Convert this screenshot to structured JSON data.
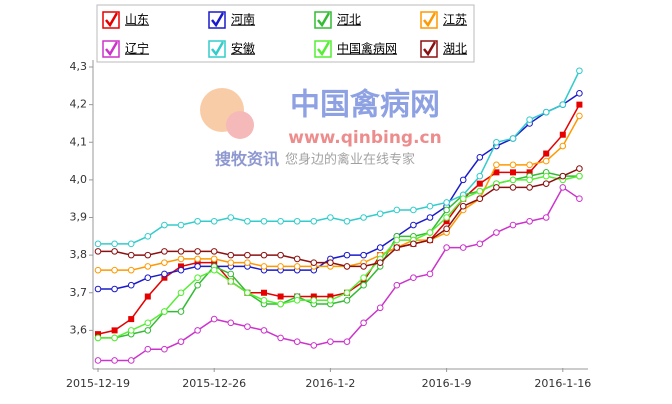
{
  "chart_data": {
    "type": "line",
    "categories": [
      "2015-12-19",
      null,
      null,
      null,
      null,
      null,
      null,
      "2015-12-26",
      null,
      null,
      null,
      null,
      null,
      null,
      "2016-1-2",
      null,
      null,
      null,
      null,
      null,
      null,
      "2016-1-9",
      null,
      null,
      null,
      null,
      null,
      null,
      "2016-1-16",
      null
    ],
    "series": [
      {
        "name": "山东",
        "color": "#e60000",
        "marker": "square",
        "values": [
          3.59,
          3.6,
          3.63,
          3.69,
          3.74,
          3.77,
          3.78,
          3.78,
          3.73,
          3.7,
          3.7,
          3.69,
          3.69,
          3.69,
          3.69,
          3.7,
          3.73,
          3.8,
          3.82,
          3.83,
          3.84,
          3.89,
          3.95,
          3.99,
          4.02,
          4.02,
          4.02,
          4.07,
          4.12,
          4.2
        ]
      },
      {
        "name": "河南",
        "color": "#1a1acc",
        "marker": "circle",
        "values": [
          3.71,
          3.71,
          3.72,
          3.74,
          3.75,
          3.76,
          3.77,
          3.77,
          3.77,
          3.77,
          3.76,
          3.76,
          3.76,
          3.76,
          3.79,
          3.8,
          3.8,
          3.82,
          3.85,
          3.88,
          3.9,
          3.93,
          4.0,
          4.06,
          4.09,
          4.11,
          4.15,
          4.18,
          4.2,
          4.23
        ]
      },
      {
        "name": "河北",
        "color": "#33bb33",
        "marker": "circle",
        "values": [
          3.58,
          3.58,
          3.59,
          3.6,
          3.65,
          3.65,
          3.72,
          3.77,
          3.75,
          3.7,
          3.67,
          3.67,
          3.69,
          3.67,
          3.67,
          3.68,
          3.72,
          3.77,
          3.85,
          3.85,
          3.86,
          3.92,
          3.96,
          3.97,
          3.99,
          4.0,
          4.01,
          4.02,
          4.01,
          4.01
        ]
      },
      {
        "name": "江苏",
        "color": "#ff9900",
        "marker": "circle",
        "values": [
          3.76,
          3.76,
          3.76,
          3.77,
          3.78,
          3.79,
          3.79,
          3.79,
          3.78,
          3.78,
          3.77,
          3.77,
          3.77,
          3.77,
          3.77,
          3.77,
          3.78,
          3.8,
          3.82,
          3.84,
          3.84,
          3.86,
          3.92,
          3.95,
          4.04,
          4.04,
          4.04,
          4.05,
          4.09,
          4.17
        ]
      },
      {
        "name": "辽宁",
        "color": "#cc33cc",
        "marker": "circle",
        "values": [
          3.52,
          3.52,
          3.52,
          3.55,
          3.55,
          3.57,
          3.6,
          3.63,
          3.62,
          3.61,
          3.6,
          3.58,
          3.57,
          3.56,
          3.57,
          3.57,
          3.62,
          3.66,
          3.72,
          3.74,
          3.75,
          3.82,
          3.82,
          3.83,
          3.86,
          3.88,
          3.89,
          3.9,
          3.98,
          3.95
        ]
      },
      {
        "name": "安徽",
        "color": "#33cccc",
        "marker": "circle",
        "values": [
          3.83,
          3.83,
          3.83,
          3.85,
          3.88,
          3.88,
          3.89,
          3.89,
          3.9,
          3.89,
          3.89,
          3.89,
          3.89,
          3.89,
          3.9,
          3.89,
          3.9,
          3.91,
          3.92,
          3.92,
          3.93,
          3.94,
          3.96,
          4.01,
          4.1,
          4.11,
          4.16,
          4.18,
          4.2,
          4.29
        ]
      },
      {
        "name": "中国禽病网",
        "color": "#55ee33",
        "marker": "circle",
        "values": [
          3.58,
          3.58,
          3.6,
          3.62,
          3.65,
          3.7,
          3.74,
          3.76,
          3.73,
          3.7,
          3.68,
          3.67,
          3.68,
          3.68,
          3.68,
          3.7,
          3.74,
          3.79,
          3.84,
          3.84,
          3.86,
          3.9,
          3.95,
          3.97,
          3.99,
          4.0,
          4.0,
          4.01,
          4.0,
          4.01
        ]
      },
      {
        "name": "湖北",
        "color": "#8b1010",
        "marker": "circle",
        "values": [
          3.81,
          3.81,
          3.8,
          3.8,
          3.81,
          3.81,
          3.81,
          3.81,
          3.8,
          3.8,
          3.8,
          3.8,
          3.79,
          3.78,
          3.78,
          3.77,
          3.77,
          3.78,
          3.82,
          3.83,
          3.84,
          3.87,
          3.93,
          3.95,
          3.98,
          3.98,
          3.98,
          3.99,
          4.01,
          4.03
        ]
      }
    ],
    "ylim": [
      3.5,
      4.3
    ],
    "yticks": [
      {
        "value": 3.6,
        "label": "3,6"
      },
      {
        "value": 3.7,
        "label": "3,7"
      },
      {
        "value": 3.8,
        "label": "3,8"
      },
      {
        "value": 3.9,
        "label": "3,9"
      },
      {
        "value": 4.0,
        "label": "4,0"
      },
      {
        "value": 4.1,
        "label": "4,1"
      },
      {
        "value": 4.2,
        "label": "4,2"
      },
      {
        "value": 4.3,
        "label": "4,3"
      }
    ],
    "grid": false,
    "watermark": {
      "site_name": "中国禽病网",
      "url": "www.qinbing.cn",
      "brand": "搜牧资讯",
      "slogan": "您身边的禽业在线专家"
    }
  }
}
